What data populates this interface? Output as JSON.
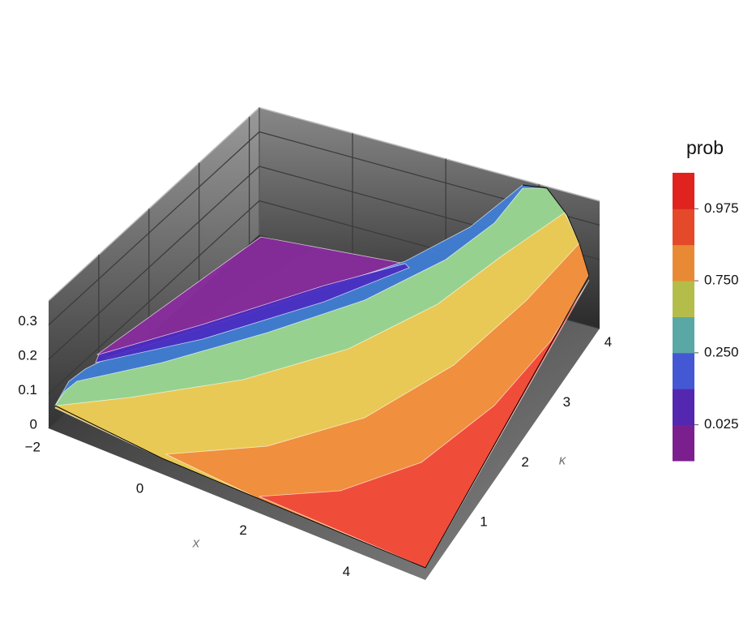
{
  "chart_data": {
    "type": "surface3d",
    "xlabel": "x",
    "ylabel": "κ",
    "xlim": [
      -2,
      5.3
    ],
    "ylim": [
      0,
      4.2
    ],
    "zlim": [
      0,
      0.37
    ],
    "xticks": [
      {
        "value": -2,
        "label": "−2"
      },
      0,
      2,
      4
    ],
    "yticks": [
      1,
      2,
      3,
      4
    ],
    "zticks": [
      0,
      0.1,
      0.2,
      0.3
    ],
    "surface_colors": [
      "#8a2aa0",
      "#4a2bc0",
      "#3f7fd8",
      "#9ed88a",
      "#f0c850",
      "#f08a3c",
      "#f0463a"
    ],
    "colorbar": {
      "title": "prob",
      "colors": [
        "#7c1f8e",
        "#5427b0",
        "#4458d4",
        "#5aa8a6",
        "#b5bd4a",
        "#e88a35",
        "#e44a2a",
        "#e0231f"
      ],
      "ticks": [
        0.025,
        {
          "value": 0.25,
          "label": "0.250"
        },
        {
          "value": 0.75,
          "label": "0.750"
        },
        0.975
      ]
    }
  }
}
